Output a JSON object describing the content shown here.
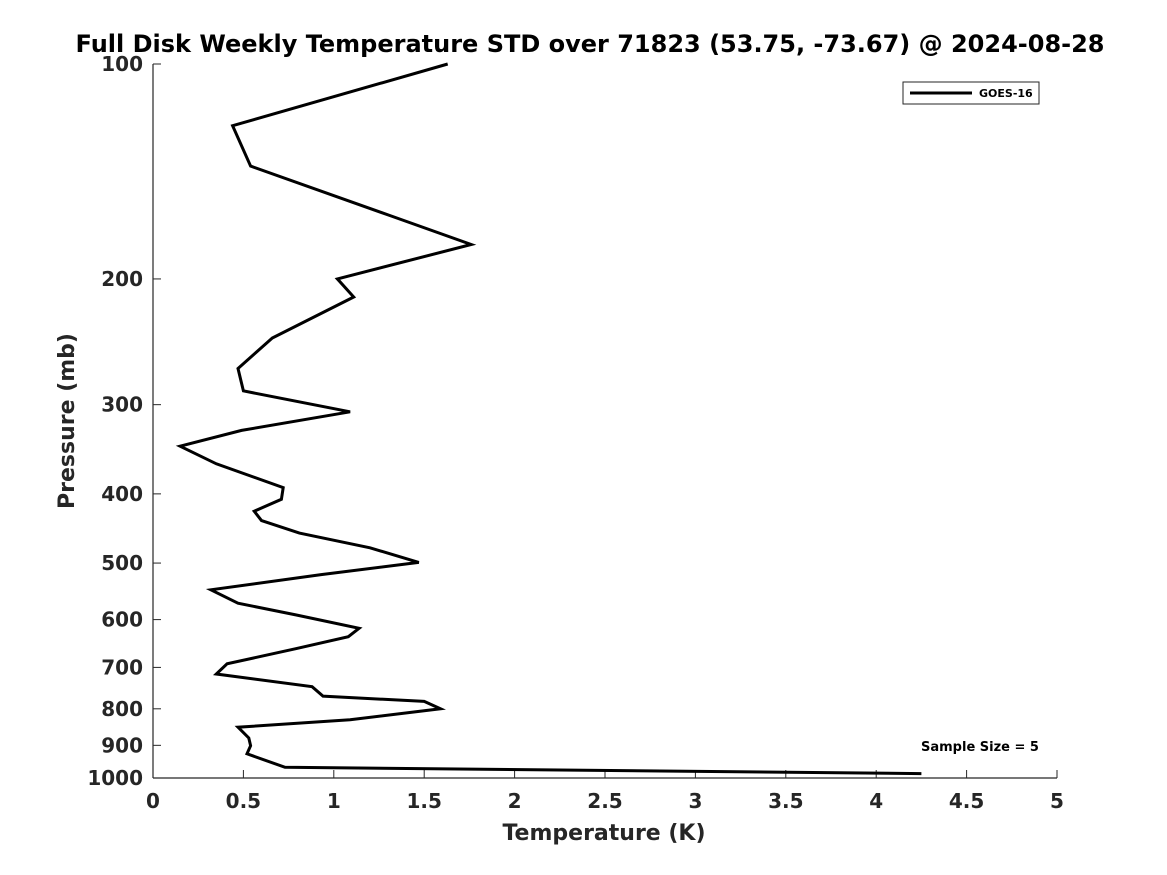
{
  "chart_data": {
    "type": "line",
    "title": "Full Disk Weekly Temperature STD over 71823 (53.75, -73.67) @ 2024-08-28",
    "xlabel": "Temperature (K)",
    "ylabel": "Pressure (mb)",
    "xlim": [
      0,
      5
    ],
    "ylim": [
      100,
      1000
    ],
    "y_scale": "log",
    "y_reversed": true,
    "x_ticks": [
      "0",
      "0.5",
      "1",
      "1.5",
      "2",
      "2.5",
      "3",
      "3.5",
      "4",
      "4.5",
      "5"
    ],
    "y_ticks": [
      "100",
      "200",
      "300",
      "400",
      "500",
      "600",
      "700",
      "800",
      "900",
      "1000"
    ],
    "grid": false,
    "legend_position": "top-right",
    "series": [
      {
        "name": "GOES-16",
        "color": "#000000",
        "x": [
          1.63,
          0.44,
          0.54,
          1.31,
          1.76,
          1.02,
          1.11,
          0.66,
          0.47,
          0.5,
          1.09,
          0.49,
          0.15,
          0.35,
          0.72,
          0.71,
          0.56,
          0.6,
          0.81,
          1.2,
          1.47,
          0.93,
          0.32,
          0.47,
          0.79,
          1.14,
          1.08,
          0.79,
          0.41,
          0.35,
          0.88,
          0.94,
          1.5,
          1.59,
          1.09,
          0.47,
          0.53,
          0.54,
          0.52,
          0.73,
          4.25
        ],
        "y": [
          100,
          122,
          139,
          163,
          179,
          200,
          212,
          242,
          267,
          287,
          307,
          326,
          343,
          363,
          392,
          407,
          423,
          436,
          454,
          476,
          499,
          519,
          545,
          569,
          591,
          617,
          634,
          659,
          692,
          715,
          745,
          768,
          781,
          800,
          829,
          849,
          879,
          901,
          925,
          966,
          986
        ]
      }
    ],
    "annotations": [
      "Sample Size = 5"
    ]
  }
}
